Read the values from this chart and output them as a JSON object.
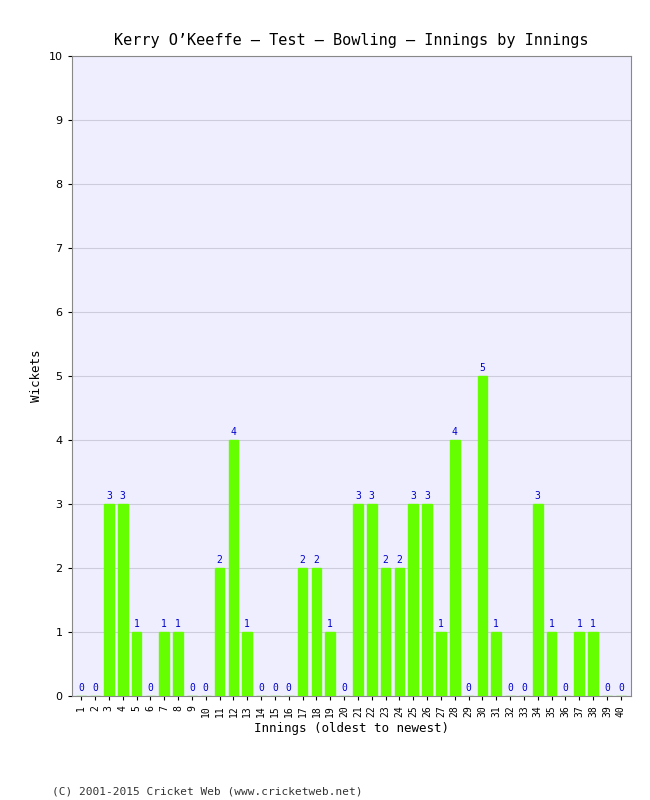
{
  "title": "Kerry O’Keeffe – Test – Bowling – Innings by Innings",
  "xlabel": "Innings (oldest to newest)",
  "ylabel": "Wickets",
  "bar_color": "#66ff00",
  "label_color": "#0000cc",
  "background_color": "#ffffff",
  "plot_bg_color": "#eeeeff",
  "grid_color": "#ccccdd",
  "footer": "(C) 2001-2015 Cricket Web (www.cricketweb.net)",
  "ylim": [
    0,
    10
  ],
  "yticks": [
    0,
    1,
    2,
    3,
    4,
    5,
    6,
    7,
    8,
    9,
    10
  ],
  "innings": [
    1,
    2,
    3,
    4,
    5,
    6,
    7,
    8,
    9,
    10,
    11,
    12,
    13,
    14,
    15,
    16,
    17,
    18,
    19,
    20,
    21,
    22,
    23,
    24,
    25,
    26,
    27,
    28,
    29,
    30,
    31,
    32,
    33,
    34,
    35,
    36,
    37,
    38,
    39,
    40
  ],
  "wickets": [
    0,
    0,
    3,
    3,
    1,
    0,
    1,
    1,
    0,
    0,
    2,
    4,
    1,
    0,
    0,
    0,
    2,
    2,
    1,
    0,
    3,
    3,
    2,
    2,
    3,
    3,
    1,
    4,
    0,
    5,
    1,
    0,
    0,
    3,
    1,
    0,
    1,
    1,
    0,
    0
  ],
  "title_fontsize": 11,
  "axis_label_fontsize": 9,
  "tick_fontsize": 7,
  "value_label_fontsize": 7,
  "footer_fontsize": 8
}
